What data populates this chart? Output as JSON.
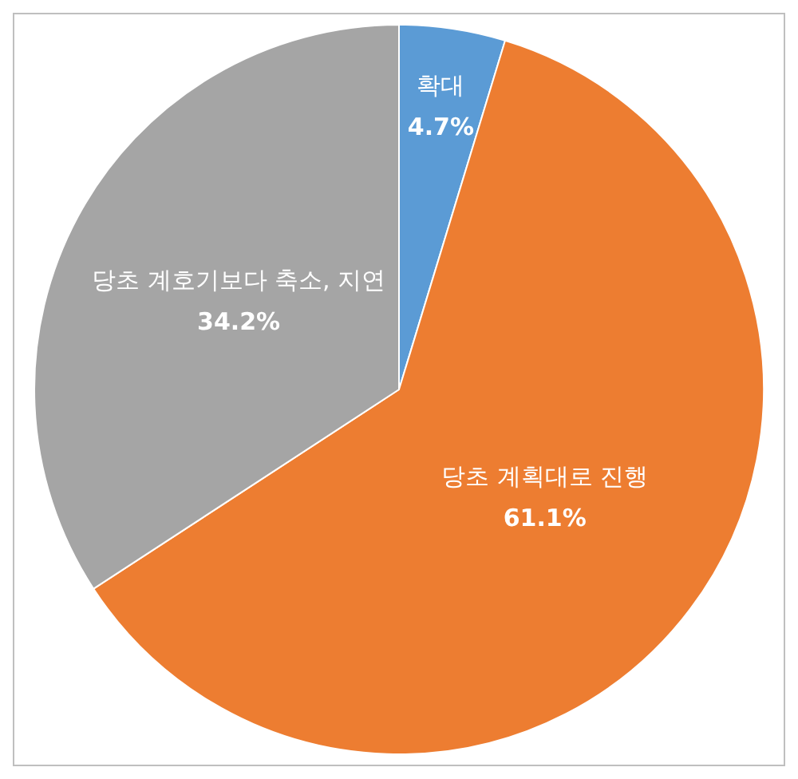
{
  "chart_data": {
    "type": "pie",
    "categories": [
      "확대",
      "당초 계획대로 진행",
      "당초 계호기보다 축소, 지연"
    ],
    "values": [
      4.7,
      61.1,
      34.2
    ],
    "value_labels": [
      "4.7%",
      "61.1%",
      "34.2%"
    ],
    "colors": [
      "#5b9bd5",
      "#ed7d31",
      "#a5a5a5"
    ],
    "legend": false
  }
}
